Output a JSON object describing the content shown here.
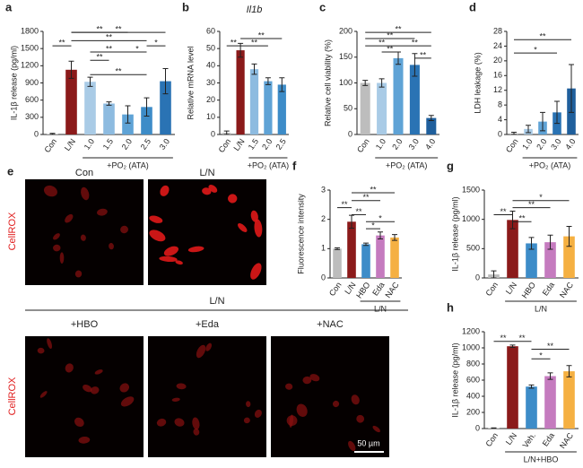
{
  "chart_data": [
    {
      "type": "bar",
      "panel": "a",
      "ylabel": "IL-1β release (pg/ml)",
      "categories": [
        "Con",
        "L/N",
        "1.0",
        "1.5",
        "2.0",
        "2.5",
        "3.0"
      ],
      "values": [
        10,
        1130,
        920,
        540,
        350,
        480,
        930
      ],
      "errors": [
        10,
        150,
        80,
        30,
        150,
        160,
        220
      ],
      "colors": [
        "#bdbdbd",
        "#8b1a1a",
        "#a9cbe6",
        "#8dbbe0",
        "#5fa3d6",
        "#3d8cc8",
        "#2a73b4"
      ],
      "ylim": [
        0,
        1800
      ],
      "yticks": [
        0,
        300,
        600,
        900,
        1200,
        1500,
        1800
      ],
      "group_label": "+PO₂ (ATA)",
      "significance": [
        "**",
        "**",
        "**",
        "**",
        "**",
        "*",
        "**",
        "*",
        "**"
      ]
    },
    {
      "type": "bar",
      "panel": "b",
      "title": "Il1b",
      "ylabel": "Relative mRNA level",
      "categories": [
        "Con",
        "L/N",
        "1.5",
        "2.0",
        "2.5"
      ],
      "values": [
        1,
        49,
        38,
        31,
        29
      ],
      "errors": [
        1,
        4,
        3,
        2,
        4
      ],
      "colors": [
        "#bdbdbd",
        "#8b1a1a",
        "#8dbbe0",
        "#5fa3d6",
        "#3d8cc8"
      ],
      "ylim": [
        0,
        60
      ],
      "yticks": [
        0,
        10,
        20,
        30,
        40,
        50,
        60
      ],
      "group_label": "+PO₂ (ATA)",
      "significance": [
        "**",
        "**",
        "**"
      ]
    },
    {
      "type": "bar",
      "panel": "c",
      "ylabel": "Relative cell viability (%)",
      "categories": [
        "Con",
        "1.0",
        "2.0",
        "3.0",
        "4.0"
      ],
      "values": [
        100,
        100,
        148,
        135,
        32
      ],
      "errors": [
        5,
        8,
        12,
        22,
        5
      ],
      "colors": [
        "#bdbdbd",
        "#a9cbe6",
        "#5fa3d6",
        "#2a73b4",
        "#1f5f9c"
      ],
      "ylim": [
        0,
        200
      ],
      "yticks": [
        0,
        50,
        100,
        150,
        200
      ],
      "group_label": "+PO₂ (ATA)",
      "significance": [
        "**",
        "**",
        "**",
        "**",
        "**",
        "**"
      ]
    },
    {
      "type": "bar",
      "panel": "d",
      "ylabel": "LDH leakage (%)",
      "categories": [
        "Con",
        "1.0",
        "2.0",
        "3.0",
        "4.0"
      ],
      "values": [
        0.3,
        1.5,
        3.5,
        6,
        12.5
      ],
      "errors": [
        0.3,
        1,
        2.5,
        3,
        6.5
      ],
      "colors": [
        "#bdbdbd",
        "#a9cbe6",
        "#5fa3d6",
        "#2a73b4",
        "#1f5f9c"
      ],
      "ylim": [
        0,
        28
      ],
      "yticks": [
        0,
        4,
        8,
        12,
        16,
        20,
        24,
        28
      ],
      "group_label": "+PO₂ (ATA)",
      "significance": [
        "**",
        "*"
      ]
    },
    {
      "type": "bar",
      "panel": "f",
      "ylabel": "Fluorescence intensity",
      "categories": [
        "Con",
        "L/N",
        "HBO",
        "Eda",
        "NAC"
      ],
      "values": [
        1.0,
        1.92,
        1.15,
        1.45,
        1.38
      ],
      "errors": [
        0.03,
        0.22,
        0.04,
        0.12,
        0.1
      ],
      "colors": [
        "#bdbdbd",
        "#8b1a1a",
        "#3d8cc8",
        "#c57bbf",
        "#f5b042"
      ],
      "ylim": [
        0,
        3
      ],
      "yticks": [
        0,
        1,
        2,
        3
      ],
      "group_label": "L/N",
      "significance": [
        "**",
        "**",
        "**",
        "*",
        "*",
        "**"
      ]
    },
    {
      "type": "bar",
      "panel": "g",
      "ylabel": "IL-1β release (pg/ml)",
      "categories": [
        "Con",
        "L/N",
        "HBO",
        "Eda",
        "NAC"
      ],
      "values": [
        60,
        990,
        590,
        610,
        710
      ],
      "errors": [
        60,
        150,
        100,
        120,
        170
      ],
      "colors": [
        "#bdbdbd",
        "#8b1a1a",
        "#3d8cc8",
        "#c57bbf",
        "#f5b042"
      ],
      "ylim": [
        0,
        1500
      ],
      "yticks": [
        0,
        500,
        1000,
        1500
      ],
      "group_label": "L/N",
      "significance": [
        "**",
        "**",
        "**",
        "*"
      ]
    },
    {
      "type": "bar",
      "panel": "h",
      "ylabel": "IL-1β release (pg/ml)",
      "categories": [
        "Con",
        "L/N",
        "Veh.",
        "Eda",
        "NAC"
      ],
      "values": [
        5,
        1020,
        520,
        650,
        710
      ],
      "errors": [
        3,
        15,
        20,
        40,
        70
      ],
      "colors": [
        "#bdbdbd",
        "#8b1a1a",
        "#3d8cc8",
        "#c57bbf",
        "#f5b042"
      ],
      "ylim": [
        0,
        1200
      ],
      "yticks": [
        0,
        200,
        400,
        600,
        800,
        1000,
        1200
      ],
      "group_label": "L/N+HBO",
      "significance": [
        "**",
        "**",
        "*",
        "**"
      ]
    }
  ],
  "image_panel": {
    "panel": "e",
    "top_labels": [
      "Con",
      "L/N"
    ],
    "group_label": "L/N",
    "bottom_labels": [
      "+HBO",
      "+Eda",
      "+NAC"
    ],
    "stain": "CellROX",
    "scale_bar": "50 µm"
  }
}
